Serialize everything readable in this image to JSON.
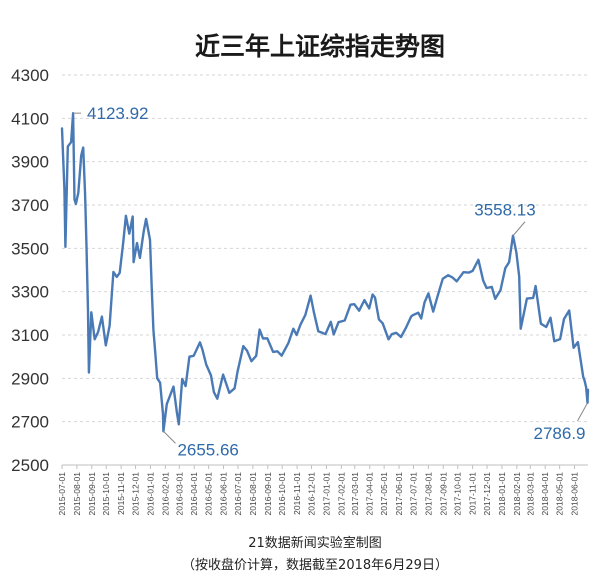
{
  "chart_data": {
    "type": "line",
    "title": "近三年上证综指走势图",
    "footer": [
      "21数据新闻实验室制图",
      "（按收盘价计算，数据截至2018年6月29日）"
    ],
    "ylim": [
      2500,
      4300
    ],
    "yticks": [
      2500,
      2700,
      2900,
      3100,
      3300,
      3500,
      3700,
      3900,
      4100,
      4300
    ],
    "xticks": [
      "2015-07-01",
      "2015-08-01",
      "2015-09-01",
      "2015-10-01",
      "2015-11-01",
      "2015-12-01",
      "2016-01-01",
      "2016-02-01",
      "2016-03-01",
      "2016-04-01",
      "2016-05-01",
      "2016-06-01",
      "2016-07-01",
      "2016-08-01",
      "2016-09-01",
      "2016-10-01",
      "2016-11-01",
      "2016-12-01",
      "2017-01-01",
      "2017-02-01",
      "2017-03-01",
      "2017-04-01",
      "2017-05-01",
      "2017-06-01",
      "2017-07-01",
      "2017-08-01",
      "2017-09-01",
      "2017-10-01",
      "2017-11-01",
      "2017-12-01",
      "2018-01-01",
      "2018-02-01",
      "2018-03-01",
      "2018-04-01",
      "2018-05-01",
      "2018-06-01"
    ],
    "grid": true,
    "series": [
      {
        "color": "#4a7ab5",
        "points": [
          [
            "2015-07-01",
            4053
          ],
          [
            "2015-07-06",
            3775
          ],
          [
            "2015-07-08",
            3507
          ],
          [
            "2015-07-13",
            3970
          ],
          [
            "2015-07-20",
            3990
          ],
          [
            "2015-07-24",
            4123.92
          ],
          [
            "2015-07-27",
            3725
          ],
          [
            "2015-07-30",
            3705
          ],
          [
            "2015-08-04",
            3756
          ],
          [
            "2015-08-10",
            3928
          ],
          [
            "2015-08-14",
            3965
          ],
          [
            "2015-08-18",
            3748
          ],
          [
            "2015-08-21",
            3508
          ],
          [
            "2015-08-24",
            3210
          ],
          [
            "2015-08-26",
            2927
          ],
          [
            "2015-08-31",
            3205
          ],
          [
            "2015-09-07",
            3080
          ],
          [
            "2015-09-14",
            3114
          ],
          [
            "2015-09-22",
            3185
          ],
          [
            "2015-09-30",
            3052
          ],
          [
            "2015-10-08",
            3143
          ],
          [
            "2015-10-16",
            3391
          ],
          [
            "2015-10-23",
            3368
          ],
          [
            "2015-10-29",
            3387
          ],
          [
            "2015-11-05",
            3522
          ],
          [
            "2015-11-11",
            3650
          ],
          [
            "2015-11-18",
            3568
          ],
          [
            "2015-11-25",
            3647
          ],
          [
            "2015-11-27",
            3436
          ],
          [
            "2015-12-04",
            3524
          ],
          [
            "2015-12-10",
            3456
          ],
          [
            "2015-12-18",
            3578
          ],
          [
            "2015-12-23",
            3636
          ],
          [
            "2015-12-31",
            3539
          ],
          [
            "2016-01-04",
            3297
          ],
          [
            "2016-01-07",
            3125
          ],
          [
            "2016-01-11",
            3016
          ],
          [
            "2016-01-15",
            2900
          ],
          [
            "2016-01-21",
            2880
          ],
          [
            "2016-01-27",
            2735
          ],
          [
            "2016-01-28",
            2655.66
          ],
          [
            "2016-02-04",
            2781
          ],
          [
            "2016-02-18",
            2862
          ],
          [
            "2016-02-25",
            2742
          ],
          [
            "2016-02-29",
            2688
          ],
          [
            "2016-03-07",
            2897
          ],
          [
            "2016-03-14",
            2864
          ],
          [
            "2016-03-22",
            3000
          ],
          [
            "2016-03-31",
            3004
          ],
          [
            "2016-04-13",
            3066
          ],
          [
            "2016-04-18",
            3033
          ],
          [
            "2016-04-26",
            2964
          ],
          [
            "2016-05-06",
            2913
          ],
          [
            "2016-05-12",
            2836
          ],
          [
            "2016-05-19",
            2806
          ],
          [
            "2016-05-31",
            2917
          ],
          [
            "2016-06-13",
            2833
          ],
          [
            "2016-06-24",
            2854
          ],
          [
            "2016-06-30",
            2930
          ],
          [
            "2016-07-12",
            3049
          ],
          [
            "2016-07-20",
            3027
          ],
          [
            "2016-07-29",
            2979
          ],
          [
            "2016-08-08",
            3004
          ],
          [
            "2016-08-15",
            3125
          ],
          [
            "2016-08-22",
            3084
          ],
          [
            "2016-08-31",
            3085
          ],
          [
            "2016-09-12",
            3022
          ],
          [
            "2016-09-21",
            3025
          ],
          [
            "2016-09-30",
            3005
          ],
          [
            "2016-10-14",
            3064
          ],
          [
            "2016-10-24",
            3129
          ],
          [
            "2016-10-31",
            3100
          ],
          [
            "2016-11-08",
            3148
          ],
          [
            "2016-11-18",
            3192
          ],
          [
            "2016-11-29",
            3282
          ],
          [
            "2016-12-06",
            3205
          ],
          [
            "2016-12-15",
            3117
          ],
          [
            "2016-12-23",
            3110
          ],
          [
            "2016-12-30",
            3104
          ],
          [
            "2017-01-10",
            3161
          ],
          [
            "2017-01-16",
            3103
          ],
          [
            "2017-01-26",
            3159
          ],
          [
            "2017-02-08",
            3167
          ],
          [
            "2017-02-20",
            3240
          ],
          [
            "2017-02-28",
            3242
          ],
          [
            "2017-03-10",
            3212
          ],
          [
            "2017-03-21",
            3261
          ],
          [
            "2017-03-31",
            3223
          ],
          [
            "2017-04-07",
            3287
          ],
          [
            "2017-04-12",
            3273
          ],
          [
            "2017-04-20",
            3172
          ],
          [
            "2017-04-28",
            3154
          ],
          [
            "2017-05-10",
            3080
          ],
          [
            "2017-05-17",
            3104
          ],
          [
            "2017-05-26",
            3110
          ],
          [
            "2017-06-05",
            3091
          ],
          [
            "2017-06-15",
            3132
          ],
          [
            "2017-06-26",
            3185
          ],
          [
            "2017-06-30",
            3192
          ],
          [
            "2017-07-11",
            3203
          ],
          [
            "2017-07-17",
            3176
          ],
          [
            "2017-07-24",
            3250
          ],
          [
            "2017-08-01",
            3292
          ],
          [
            "2017-08-11",
            3208
          ],
          [
            "2017-08-21",
            3286
          ],
          [
            "2017-08-31",
            3360
          ],
          [
            "2017-09-11",
            3376
          ],
          [
            "2017-09-20",
            3366
          ],
          [
            "2017-09-29",
            3348
          ],
          [
            "2017-10-13",
            3390
          ],
          [
            "2017-10-24",
            3388
          ],
          [
            "2017-11-01",
            3396
          ],
          [
            "2017-11-13",
            3447
          ],
          [
            "2017-11-23",
            3351
          ],
          [
            "2017-11-30",
            3317
          ],
          [
            "2017-12-11",
            3322
          ],
          [
            "2017-12-18",
            3267
          ],
          [
            "2017-12-29",
            3307
          ],
          [
            "2018-01-08",
            3409
          ],
          [
            "2018-01-16",
            3436
          ],
          [
            "2018-01-24",
            3558.13
          ],
          [
            "2018-01-31",
            3480
          ],
          [
            "2018-02-06",
            3370
          ],
          [
            "2018-02-09",
            3129
          ],
          [
            "2018-02-22",
            3268
          ],
          [
            "2018-03-07",
            3271
          ],
          [
            "2018-03-12",
            3326
          ],
          [
            "2018-03-23",
            3152
          ],
          [
            "2018-04-03",
            3137
          ],
          [
            "2018-04-12",
            3180
          ],
          [
            "2018-04-20",
            3071
          ],
          [
            "2018-05-02",
            3081
          ],
          [
            "2018-05-10",
            3174
          ],
          [
            "2018-05-21",
            3213
          ],
          [
            "2018-05-30",
            3041
          ],
          [
            "2018-06-08",
            3067
          ],
          [
            "2018-06-19",
            2907
          ],
          [
            "2018-06-22",
            2889
          ],
          [
            "2018-06-25",
            2859
          ],
          [
            "2018-06-28",
            2786.9
          ],
          [
            "2018-06-29",
            2847
          ]
        ]
      }
    ],
    "annotations": [
      {
        "date": "2015-07-24",
        "value": 4123.92,
        "label": "4123.92"
      },
      {
        "date": "2016-01-28",
        "value": 2655.66,
        "label": "2655.66"
      },
      {
        "date": "2018-01-24",
        "value": 3558.13,
        "label": "3558.13"
      },
      {
        "date": "2018-06-28",
        "value": 2786.9,
        "label": "2786.9"
      }
    ]
  }
}
